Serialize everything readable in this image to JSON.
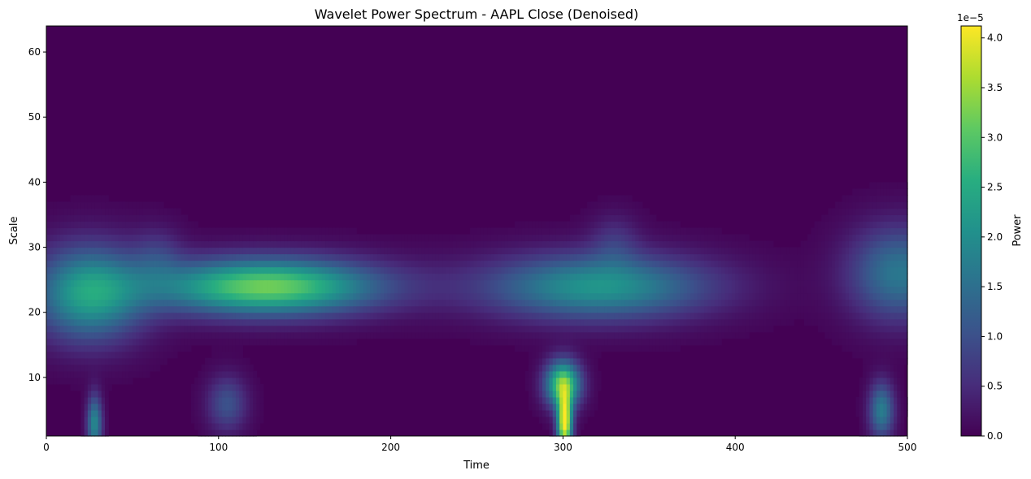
{
  "chart_data": {
    "type": "heatmap",
    "title": "Wavelet Power Spectrum - AAPL Close (Denoised)",
    "xlabel": "Time",
    "ylabel": "Scale",
    "xlim": [
      0,
      500
    ],
    "ylim": [
      1,
      64
    ],
    "x_ticks": [
      0,
      100,
      200,
      300,
      400,
      500
    ],
    "y_ticks": [
      10,
      20,
      30,
      40,
      50,
      60
    ],
    "colormap": "viridis",
    "colorbar": {
      "label": "Power",
      "offset_text": "1e−5",
      "range": [
        0,
        4.12e-05
      ],
      "ticks": [
        0.0,
        0.5,
        1.0,
        1.5,
        2.0,
        2.5,
        3.0,
        3.5,
        4.0
      ],
      "tick_labels": [
        "0.0",
        "0.5",
        "1.0",
        "1.5",
        "2.0",
        "2.5",
        "3.0",
        "3.5",
        "4.0"
      ]
    },
    "power_features": [
      {
        "time": 25,
        "scale": 23,
        "power": 2.3e-05,
        "time_spread": 22,
        "scale_spread": 5
      },
      {
        "time": 28,
        "scale": 3,
        "power": 1.9e-05,
        "time_spread": 3,
        "scale_spread": 3
      },
      {
        "time": 128,
        "scale": 24,
        "power": 3.2e-05,
        "time_spread": 45,
        "scale_spread": 3
      },
      {
        "time": 105,
        "scale": 6,
        "power": 1e-05,
        "time_spread": 8,
        "scale_spread": 3
      },
      {
        "time": 320,
        "scale": 24,
        "power": 2.1e-05,
        "time_spread": 45,
        "scale_spread": 3.5
      },
      {
        "time": 301,
        "scale": 3,
        "power": 4.1e-05,
        "time_spread": 3,
        "scale_spread": 3
      },
      {
        "time": 300,
        "scale": 9,
        "power": 3.2e-05,
        "time_spread": 7,
        "scale_spread": 2.5
      },
      {
        "time": 495,
        "scale": 26,
        "power": 1.6e-05,
        "time_spread": 20,
        "scale_spread": 5
      },
      {
        "time": 485,
        "scale": 5,
        "power": 1.7e-05,
        "time_spread": 5,
        "scale_spread": 3
      },
      {
        "time": 65,
        "scale": 29,
        "power": 5e-06,
        "time_spread": 10,
        "scale_spread": 3
      },
      {
        "time": 330,
        "scale": 31,
        "power": 5e-06,
        "time_spread": 10,
        "scale_spread": 3
      }
    ]
  }
}
